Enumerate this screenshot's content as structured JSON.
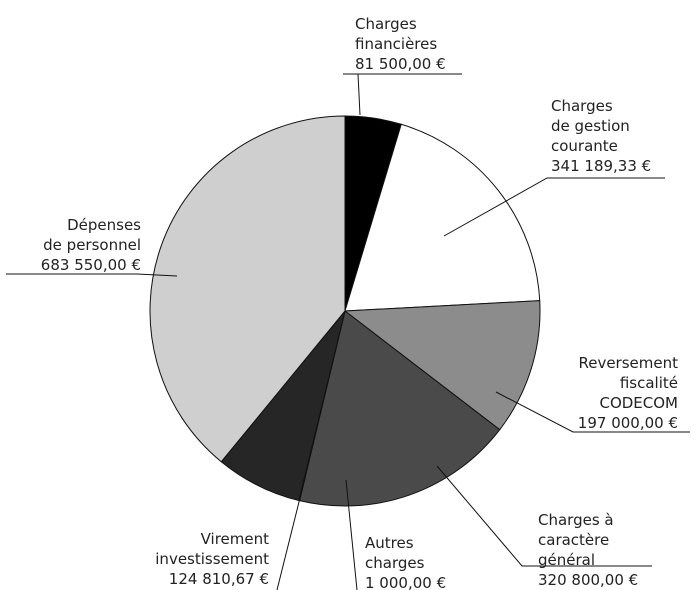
{
  "chart_data": {
    "type": "pie",
    "title": "",
    "start_angle_deg": 0,
    "direction": "clockwise",
    "legend": "none",
    "slices": [
      {
        "label_lines": [
          "Charges",
          "financières"
        ],
        "value_text": "81 500,00  €",
        "value": 81500.0,
        "color": "#000000"
      },
      {
        "label_lines": [
          "Charges",
          "de gestion",
          "courante"
        ],
        "value_text": "341 189,33  €",
        "value": 341189.33,
        "color": "#ffffff"
      },
      {
        "label_lines": [
          "Reversement",
          "fiscalité",
          "CODECOM"
        ],
        "value_text": "197 000,00  €",
        "value": 197000.0,
        "color": "#8c8c8c"
      },
      {
        "label_lines": [
          "Charges à",
          "caractère",
          "général"
        ],
        "value_text": "320 800,00  €",
        "value": 320800.0,
        "color": "#4a4a4a"
      },
      {
        "label_lines": [
          "Autres",
          "charges"
        ],
        "value_text": "1 000,00  €",
        "value": 1000.0,
        "color": "#d0d0d0"
      },
      {
        "label_lines": [
          "Virement",
          "investissement"
        ],
        "value_text": "124 810,67  €",
        "value": 124810.67,
        "color": "#262626"
      },
      {
        "label_lines": [
          "Dépenses",
          "de personnel"
        ],
        "value_text": "683 550,00  €",
        "value": 683550.0,
        "color": "#cfcfcf"
      }
    ]
  }
}
